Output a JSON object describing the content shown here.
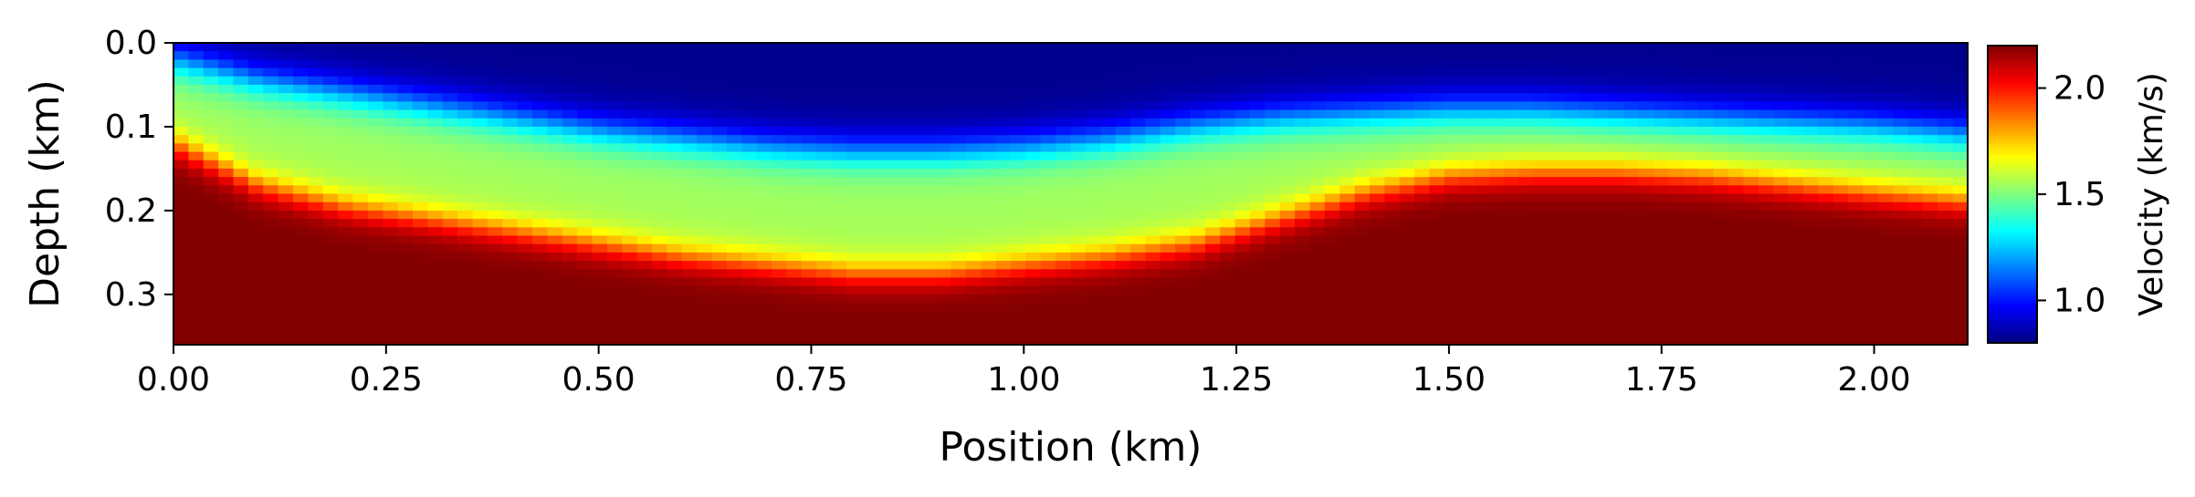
{
  "chart_data": {
    "type": "heatmap",
    "title": "",
    "xlabel": "Position (km)",
    "ylabel": "Depth (km)",
    "xlim": [
      0.0,
      2.11
    ],
    "ylim": [
      0.36,
      0.0
    ],
    "xticks": [
      "0.00",
      "0.25",
      "0.50",
      "0.75",
      "1.00",
      "1.25",
      "1.50",
      "1.75",
      "2.00"
    ],
    "yticks": [
      "0.0",
      "0.1",
      "0.2",
      "0.3"
    ],
    "xtick_values": [
      0.0,
      0.25,
      0.5,
      0.75,
      1.0,
      1.25,
      1.5,
      1.75,
      2.0
    ],
    "ytick_values": [
      0.0,
      0.1,
      0.2,
      0.3
    ],
    "colorbar": {
      "label": "Velocity (km/s)",
      "colormap": "jet",
      "range": [
        0.8,
        2.2
      ],
      "ticks": [
        "1.0",
        "1.5",
        "2.0"
      ],
      "tick_values": [
        1.0,
        1.5,
        2.0
      ]
    },
    "grid": false,
    "velocity_profile": {
      "positions_km": [
        0.0,
        0.1,
        0.2,
        0.3,
        0.4,
        0.5,
        0.6,
        0.7,
        0.8,
        0.9,
        1.0,
        1.1,
        1.2,
        1.3,
        1.4,
        1.5,
        1.6,
        1.7,
        1.8,
        1.9,
        2.0,
        2.11
      ],
      "top_layer_bottom_depth_km": [
        0.02,
        0.045,
        0.06,
        0.075,
        0.09,
        0.105,
        0.115,
        0.125,
        0.13,
        0.13,
        0.125,
        0.115,
        0.1,
        0.09,
        0.085,
        0.08,
        0.08,
        0.085,
        0.09,
        0.095,
        0.1,
        0.11
      ],
      "bottom_layer_top_depth_km": [
        0.12,
        0.17,
        0.195,
        0.21,
        0.225,
        0.24,
        0.255,
        0.265,
        0.275,
        0.275,
        0.265,
        0.255,
        0.24,
        0.21,
        0.18,
        0.16,
        0.155,
        0.155,
        0.16,
        0.17,
        0.18,
        0.19
      ],
      "top_velocity_km_s": 0.82,
      "mid_velocity_km_s": 1.55,
      "bottom_velocity_km_s": 2.2
    }
  }
}
